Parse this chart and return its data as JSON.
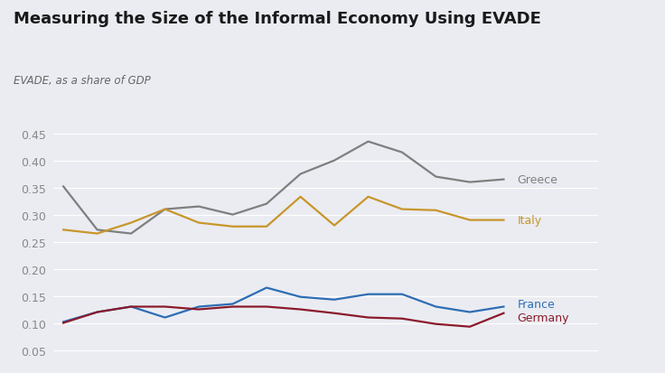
{
  "title": "Measuring the Size of the Informal Economy Using EVADE",
  "subtitle": "EVADE, as a share of GDP",
  "background_color": "#eaecf2",
  "plot_bg_color": "#eaecf2",
  "greece": [
    0.352,
    0.272,
    0.265,
    0.31,
    0.315,
    0.3,
    0.32,
    0.375,
    0.4,
    0.435,
    0.415,
    0.37,
    0.36,
    0.365
  ],
  "italy": [
    0.272,
    0.265,
    0.285,
    0.31,
    0.285,
    0.278,
    0.278,
    0.333,
    0.28,
    0.333,
    0.31,
    0.308,
    0.29,
    0.29
  ],
  "france": [
    0.102,
    0.12,
    0.13,
    0.11,
    0.13,
    0.135,
    0.165,
    0.148,
    0.143,
    0.153,
    0.153,
    0.13,
    0.12,
    0.13
  ],
  "germany": [
    0.1,
    0.12,
    0.13,
    0.13,
    0.125,
    0.13,
    0.13,
    0.125,
    0.118,
    0.11,
    0.108,
    0.098,
    0.093,
    0.118
  ],
  "greece_color": "#7f7f7f",
  "italy_color": "#c8962a",
  "france_color": "#2e6db4",
  "germany_color": "#8b1a2a",
  "yticks": [
    0.05,
    0.1,
    0.15,
    0.2,
    0.25,
    0.3,
    0.35,
    0.4,
    0.45
  ],
  "ylim": [
    0.042,
    0.47
  ],
  "label_greece": "Greece",
  "label_italy": "Italy",
  "label_france": "France",
  "label_germany": "Germany",
  "label_color_greece": "#7f7f7f",
  "label_color_italy": "#c8962a",
  "label_color_france": "#2e6db4",
  "label_color_germany": "#8b1a2a",
  "title_fontsize": 13,
  "subtitle_fontsize": 8.5,
  "tick_fontsize": 9,
  "label_fontsize": 9,
  "grid_color": "#ffffff",
  "tick_color": "#888888"
}
